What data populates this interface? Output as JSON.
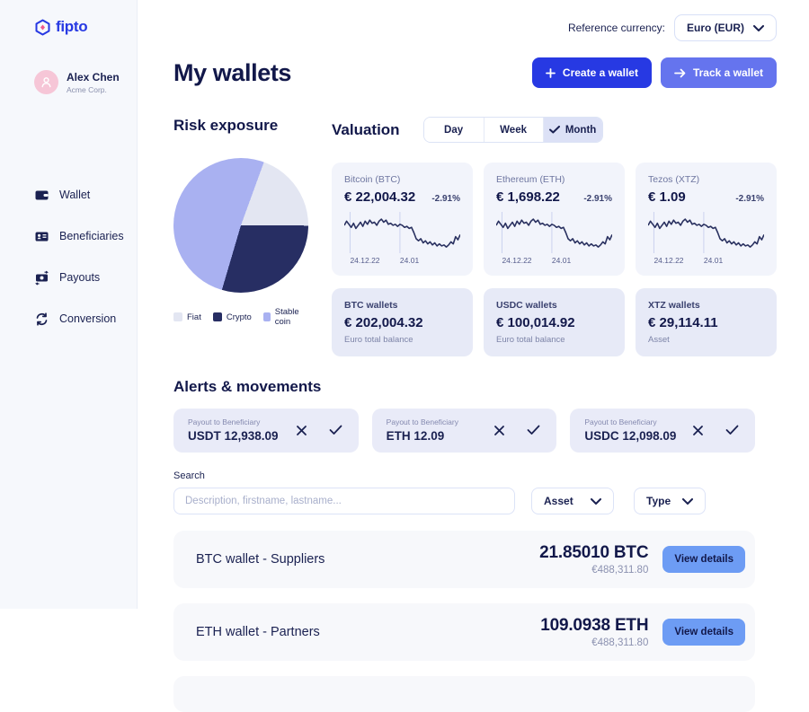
{
  "brand": {
    "name": "fipto",
    "color": "#2739E3"
  },
  "user": {
    "name": "Alex Chen",
    "company": "Acme Corp."
  },
  "sidebar": {
    "items": [
      {
        "label": "Wallet",
        "icon": "wallet-icon"
      },
      {
        "label": "Beneficiaries",
        "icon": "beneficiaries-icon"
      },
      {
        "label": "Payouts",
        "icon": "payouts-icon"
      },
      {
        "label": "Conversion",
        "icon": "conversion-icon"
      }
    ]
  },
  "header": {
    "reference_currency_label": "Reference currency:",
    "reference_currency_value": "Euro (EUR)"
  },
  "page": {
    "title": "My wallets",
    "create_button": "Create a wallet",
    "track_button": "Track a wallet"
  },
  "risk_exposure": {
    "title": "Risk exposure"
  },
  "valuation": {
    "title": "Valuation",
    "tabs": [
      {
        "label": "Day",
        "selected": false
      },
      {
        "label": "Week",
        "selected": false
      },
      {
        "label": "Month",
        "selected": true
      }
    ],
    "assets": [
      {
        "name": "Bitcoin (BTC)",
        "price": "€ 22,004.32",
        "change": "-2.91%"
      },
      {
        "name": "Ethereum (ETH)",
        "price": "€ 1,698.22",
        "change": "-2.91%"
      },
      {
        "name": "Tezos (XTZ)",
        "price": "€ 1.09",
        "change": "-2.91%"
      }
    ],
    "chart_labels": [
      "24.12.22",
      "24.01"
    ],
    "summary_cards": [
      {
        "title": "BTC wallets",
        "amount": "€ 202,004.32",
        "subtitle": "Euro total balance"
      },
      {
        "title": "USDC wallets",
        "amount": "€ 100,014.92",
        "subtitle": "Euro total balance"
      },
      {
        "title": "XTZ wallets",
        "amount": "€ 29,114.11",
        "subtitle": "Asset"
      }
    ]
  },
  "alerts": {
    "title": "Alerts & movements",
    "items": [
      {
        "label": "Payout to Beneficiary",
        "value": "USDT 12,938.09"
      },
      {
        "label": "Payout to Beneficiary",
        "value": "ETH 12.09"
      },
      {
        "label": "Payout to Beneficiary",
        "value": "USDC 12,098.09"
      }
    ]
  },
  "search": {
    "label": "Search",
    "placeholder": "Description, firstname, lastname...",
    "asset_filter": "Asset",
    "type_filter": "Type"
  },
  "wallet_list": {
    "rows": [
      {
        "name": "BTC wallet - Suppliers",
        "amount": "21.85010 BTC",
        "eur": "€488,311.80",
        "action": "View details"
      },
      {
        "name": "ETH wallet - Partners",
        "amount": "109.0938 ETH",
        "eur": "€488,311.80",
        "action": "View details"
      }
    ]
  },
  "chart_data": [
    {
      "type": "pie",
      "title": "Risk exposure",
      "start_angle": 20,
      "slices": [
        {
          "label": "Fiat",
          "value": 19.5,
          "color": "#E3E6F2"
        },
        {
          "label": "Crypto",
          "value": 29.5,
          "color": "#272E63"
        },
        {
          "label": "Stable coin",
          "value": 51.0,
          "color": "#A9B1F1"
        }
      ],
      "legend_position": "bottom"
    },
    {
      "type": "line",
      "title": "Asset valuation over one month (same sparkline on BTC, ETH and XTZ cards)",
      "x_labels": [
        "24.12.22",
        "24.01"
      ],
      "gridline_x_percent": [
        5,
        48
      ],
      "line_color": "#2A3160",
      "grid_color": "#CBD3F0",
      "points": [
        [
          0,
          13
        ],
        [
          2,
          9
        ],
        [
          4,
          12
        ],
        [
          6,
          15
        ],
        [
          8,
          11
        ],
        [
          10,
          16
        ],
        [
          12,
          13
        ],
        [
          14,
          10
        ],
        [
          16,
          14
        ],
        [
          18,
          9
        ],
        [
          20,
          12
        ],
        [
          22,
          8
        ],
        [
          24,
          11
        ],
        [
          26,
          10
        ],
        [
          28,
          13
        ],
        [
          30,
          9
        ],
        [
          32,
          7
        ],
        [
          34,
          10
        ],
        [
          36,
          8
        ],
        [
          38,
          12
        ],
        [
          40,
          11
        ],
        [
          42,
          13
        ],
        [
          44,
          12
        ],
        [
          46,
          14
        ],
        [
          48,
          12
        ],
        [
          50,
          13
        ],
        [
          52,
          15
        ],
        [
          54,
          14
        ],
        [
          56,
          16
        ],
        [
          58,
          15
        ],
        [
          60,
          20
        ],
        [
          62,
          26
        ],
        [
          64,
          28
        ],
        [
          66,
          26
        ],
        [
          68,
          30
        ],
        [
          70,
          28
        ],
        [
          72,
          31
        ],
        [
          74,
          29
        ],
        [
          76,
          32
        ],
        [
          78,
          30
        ],
        [
          80,
          33
        ],
        [
          82,
          31
        ],
        [
          84,
          33
        ],
        [
          86,
          32
        ],
        [
          88,
          34
        ],
        [
          90,
          32
        ],
        [
          92,
          29
        ],
        [
          94,
          31
        ],
        [
          96,
          24
        ],
        [
          98,
          27
        ],
        [
          100,
          22
        ]
      ]
    }
  ]
}
